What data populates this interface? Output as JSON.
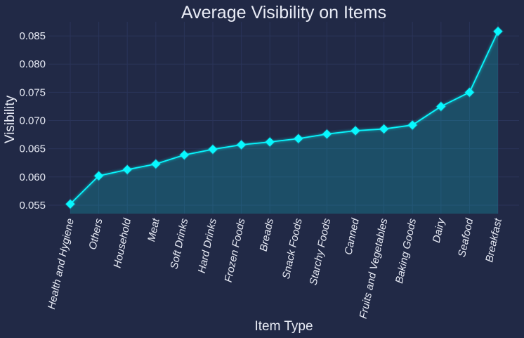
{
  "chart_data": {
    "type": "line",
    "title": "Average Visibility on Items",
    "xlabel": "Item Type",
    "ylabel": "Visibility",
    "categories": [
      "Health and Hygiene",
      "Others",
      "Household",
      "Meat",
      "Soft Drinks",
      "Hard Drinks",
      "Frozen Foods",
      "Breads",
      "Snack Foods",
      "Starchy Foods",
      "Canned",
      "Fruits and Vegetables",
      "Baking Goods",
      "Dairy",
      "Seafood",
      "Breakfast"
    ],
    "values": [
      0.0552,
      0.0602,
      0.0613,
      0.0623,
      0.0639,
      0.0649,
      0.0657,
      0.0662,
      0.0668,
      0.0676,
      0.0682,
      0.0685,
      0.0692,
      0.0725,
      0.075,
      0.0858
    ],
    "yticks": [
      "0.055",
      "0.060",
      "0.065",
      "0.070",
      "0.075",
      "0.080",
      "0.085"
    ],
    "ylim": [
      0.0535,
      0.0875
    ],
    "grid": true,
    "area_fill": true,
    "marker": "diamond",
    "colors": {
      "background": "#212946",
      "grid": "#2A3459",
      "line": "#08F7FE",
      "fill": "#08F7FE",
      "text": "#e8ebf5"
    }
  }
}
